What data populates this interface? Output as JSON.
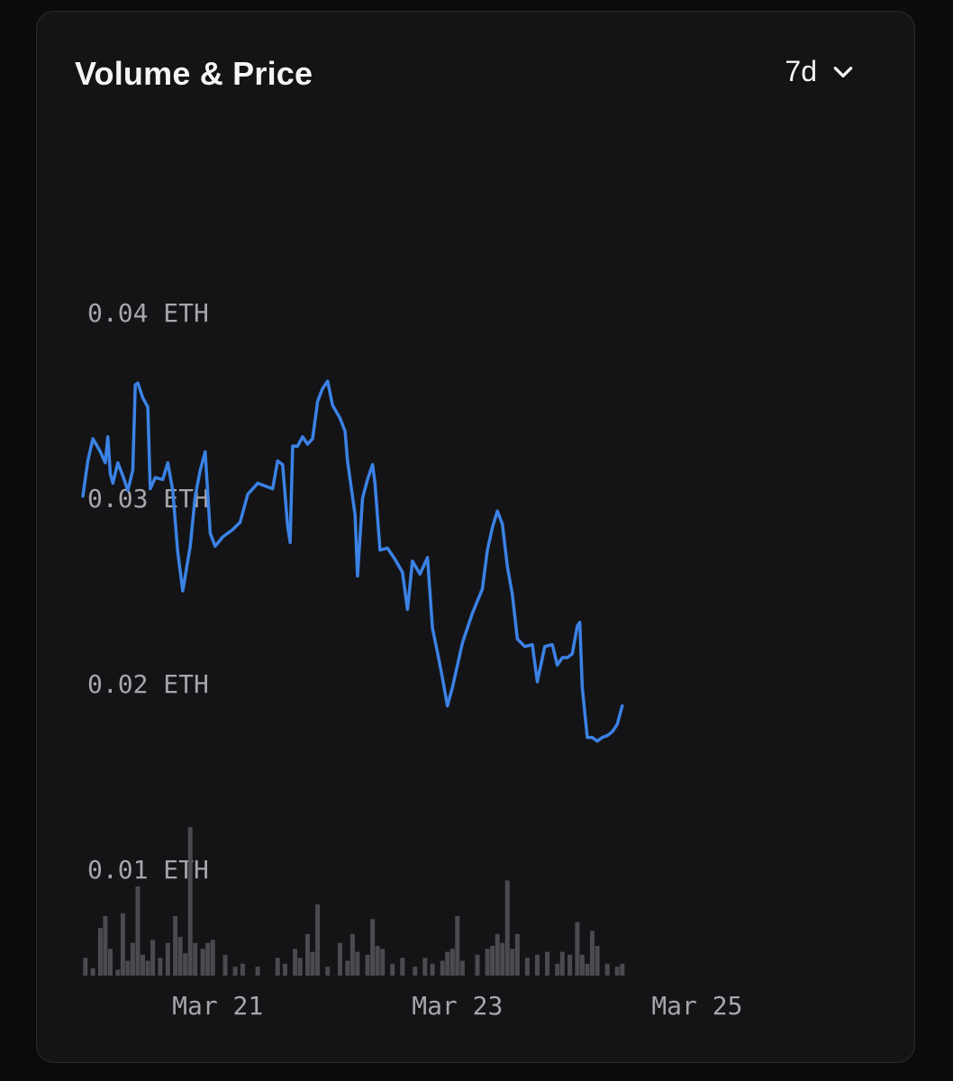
{
  "card": {
    "title": "Volume & Price",
    "range_selector": {
      "value": "7d",
      "icon": "chevron-down-icon"
    }
  },
  "colors": {
    "background": "#0b0b0c",
    "card": "#141416",
    "price_line": "#3b82e6",
    "volume_bars": "#4a4a4f",
    "axis_text": "#a6a6ab"
  },
  "chart_data": {
    "type": "line",
    "title": "Volume & Price",
    "x_range": [
      "2024-03-19T21:00",
      "2024-03-26T11:00"
    ],
    "y_unit": "ETH",
    "y_ticks": [
      {
        "value": 0.04,
        "label": "0.04 ETH"
      },
      {
        "value": 0.03,
        "label": "0.03 ETH"
      },
      {
        "value": 0.02,
        "label": "0.02 ETH"
      },
      {
        "value": 0.01,
        "label": "0.01 ETH"
      }
    ],
    "y_range": [
      0.0,
      0.05
    ],
    "x_ticks": [
      {
        "date": "2024-03-21",
        "label": "Mar 21"
      },
      {
        "date": "2024-03-23",
        "label": "Mar 23"
      },
      {
        "date": "2024-03-25",
        "label": "Mar 25"
      }
    ],
    "grid": false,
    "series": [
      {
        "type": "line",
        "points": [
          [
            "2024-03-19T21:00",
            0.0303
          ],
          [
            "2024-03-19T22:00",
            0.0322
          ],
          [
            "2024-03-19T23:00",
            0.0334
          ],
          [
            "2024-03-20T00:30",
            0.0327
          ],
          [
            "2024-03-20T01:30",
            0.0321
          ],
          [
            "2024-03-20T02:00",
            0.0335
          ],
          [
            "2024-03-20T02:30",
            0.0315
          ],
          [
            "2024-03-20T03:00",
            0.031
          ],
          [
            "2024-03-20T04:00",
            0.0321
          ],
          [
            "2024-03-20T05:00",
            0.0314
          ],
          [
            "2024-03-20T06:00",
            0.0306
          ],
          [
            "2024-03-20T07:00",
            0.0317
          ],
          [
            "2024-03-20T07:30",
            0.0363
          ],
          [
            "2024-03-20T08:00",
            0.0364
          ],
          [
            "2024-03-20T09:00",
            0.0356
          ],
          [
            "2024-03-20T10:00",
            0.0351
          ],
          [
            "2024-03-20T10:30",
            0.0307
          ],
          [
            "2024-03-20T11:30",
            0.0313
          ],
          [
            "2024-03-20T13:00",
            0.0312
          ],
          [
            "2024-03-20T14:00",
            0.0321
          ],
          [
            "2024-03-20T15:00",
            0.0306
          ],
          [
            "2024-03-20T16:00",
            0.0273
          ],
          [
            "2024-03-20T17:00",
            0.0252
          ],
          [
            "2024-03-20T18:30",
            0.0276
          ],
          [
            "2024-03-20T19:30",
            0.0303
          ],
          [
            "2024-03-20T20:30",
            0.0317
          ],
          [
            "2024-03-20T21:30",
            0.0327
          ],
          [
            "2024-03-20T22:30",
            0.0283
          ],
          [
            "2024-03-20T23:30",
            0.0276
          ],
          [
            "2024-03-21T01:00",
            0.0281
          ],
          [
            "2024-03-21T03:00",
            0.0285
          ],
          [
            "2024-03-21T04:30",
            0.0289
          ],
          [
            "2024-03-21T06:00",
            0.0304
          ],
          [
            "2024-03-21T08:00",
            0.031
          ],
          [
            "2024-03-21T11:00",
            0.0307
          ],
          [
            "2024-03-21T12:00",
            0.0322
          ],
          [
            "2024-03-21T13:00",
            0.032
          ],
          [
            "2024-03-21T14:00",
            0.0287
          ],
          [
            "2024-03-21T14:30",
            0.0278
          ],
          [
            "2024-03-21T15:00",
            0.033
          ],
          [
            "2024-03-21T16:00",
            0.033
          ],
          [
            "2024-03-21T17:00",
            0.0335
          ],
          [
            "2024-03-21T18:00",
            0.0331
          ],
          [
            "2024-03-21T19:00",
            0.0334
          ],
          [
            "2024-03-21T20:00",
            0.0354
          ],
          [
            "2024-03-21T21:00",
            0.0361
          ],
          [
            "2024-03-21T22:00",
            0.0365
          ],
          [
            "2024-03-21T23:00",
            0.0352
          ],
          [
            "2024-03-22T00:30",
            0.0345
          ],
          [
            "2024-03-22T01:30",
            0.0338
          ],
          [
            "2024-03-22T02:00",
            0.0322
          ],
          [
            "2024-03-22T03:30",
            0.0293
          ],
          [
            "2024-03-22T04:00",
            0.026
          ],
          [
            "2024-03-22T05:00",
            0.0302
          ],
          [
            "2024-03-22T06:00",
            0.0312
          ],
          [
            "2024-03-22T07:00",
            0.032
          ],
          [
            "2024-03-22T07:30",
            0.031
          ],
          [
            "2024-03-22T08:30",
            0.0274
          ],
          [
            "2024-03-22T10:00",
            0.0275
          ],
          [
            "2024-03-22T11:30",
            0.0269
          ],
          [
            "2024-03-22T13:00",
            0.0262
          ],
          [
            "2024-03-22T14:00",
            0.0242
          ],
          [
            "2024-03-22T15:00",
            0.0268
          ],
          [
            "2024-03-22T16:30",
            0.0261
          ],
          [
            "2024-03-22T18:00",
            0.027
          ],
          [
            "2024-03-22T19:00",
            0.0232
          ],
          [
            "2024-03-22T20:00",
            0.0219
          ],
          [
            "2024-03-22T21:00",
            0.0205
          ],
          [
            "2024-03-22T22:00",
            0.019
          ],
          [
            "2024-03-22T23:00",
            0.02
          ],
          [
            "2024-03-23T01:00",
            0.0224
          ],
          [
            "2024-03-23T03:00",
            0.024
          ],
          [
            "2024-03-23T05:00",
            0.0253
          ],
          [
            "2024-03-23T06:00",
            0.0274
          ],
          [
            "2024-03-23T07:00",
            0.0286
          ],
          [
            "2024-03-23T08:00",
            0.0295
          ],
          [
            "2024-03-23T09:00",
            0.0288
          ],
          [
            "2024-03-23T10:00",
            0.0265
          ],
          [
            "2024-03-23T11:00",
            0.025
          ],
          [
            "2024-03-23T12:00",
            0.0226
          ],
          [
            "2024-03-23T13:30",
            0.0222
          ],
          [
            "2024-03-23T15:00",
            0.0223
          ],
          [
            "2024-03-23T16:00",
            0.0203
          ],
          [
            "2024-03-23T17:30",
            0.0222
          ],
          [
            "2024-03-23T19:00",
            0.0223
          ],
          [
            "2024-03-23T20:00",
            0.0212
          ],
          [
            "2024-03-23T21:00",
            0.0216
          ],
          [
            "2024-03-23T22:00",
            0.0216
          ],
          [
            "2024-03-23T23:00",
            0.0218
          ],
          [
            "2024-03-24T00:00",
            0.0233
          ],
          [
            "2024-03-24T00:30",
            0.0235
          ],
          [
            "2024-03-24T01:00",
            0.02
          ],
          [
            "2024-03-24T02:00",
            0.0173
          ],
          [
            "2024-03-24T03:00",
            0.0173
          ],
          [
            "2024-03-24T04:00",
            0.0171
          ],
          [
            "2024-03-24T05:00",
            0.0173
          ],
          [
            "2024-03-24T06:00",
            0.0174
          ],
          [
            "2024-03-24T07:00",
            0.0176
          ],
          [
            "2024-03-24T08:00",
            0.018
          ],
          [
            "2024-03-24T09:00",
            0.019
          ]
        ]
      }
    ],
    "volume_bars": [
      {
        "x": "2024-03-19T21:30",
        "v": 0.12
      },
      {
        "x": "2024-03-19T23:00",
        "v": 0.05
      },
      {
        "x": "2024-03-20T00:30",
        "v": 0.32
      },
      {
        "x": "2024-03-20T01:30",
        "v": 0.4
      },
      {
        "x": "2024-03-20T02:30",
        "v": 0.18
      },
      {
        "x": "2024-03-20T04:00",
        "v": 0.04
      },
      {
        "x": "2024-03-20T05:00",
        "v": 0.42
      },
      {
        "x": "2024-03-20T06:00",
        "v": 0.1
      },
      {
        "x": "2024-03-20T07:00",
        "v": 0.22
      },
      {
        "x": "2024-03-20T08:00",
        "v": 0.6
      },
      {
        "x": "2024-03-20T09:00",
        "v": 0.14
      },
      {
        "x": "2024-03-20T10:00",
        "v": 0.1
      },
      {
        "x": "2024-03-20T11:00",
        "v": 0.24
      },
      {
        "x": "2024-03-20T12:30",
        "v": 0.12
      },
      {
        "x": "2024-03-20T14:00",
        "v": 0.22
      },
      {
        "x": "2024-03-20T15:30",
        "v": 0.4
      },
      {
        "x": "2024-03-20T16:30",
        "v": 0.26
      },
      {
        "x": "2024-03-20T17:30",
        "v": 0.15
      },
      {
        "x": "2024-03-20T18:30",
        "v": 1.0
      },
      {
        "x": "2024-03-20T19:30",
        "v": 0.22
      },
      {
        "x": "2024-03-20T21:00",
        "v": 0.18
      },
      {
        "x": "2024-03-20T22:00",
        "v": 0.22
      },
      {
        "x": "2024-03-20T23:00",
        "v": 0.24
      },
      {
        "x": "2024-03-21T01:30",
        "v": 0.14
      },
      {
        "x": "2024-03-21T03:30",
        "v": 0.06
      },
      {
        "x": "2024-03-21T05:00",
        "v": 0.08
      },
      {
        "x": "2024-03-21T08:00",
        "v": 0.06
      },
      {
        "x": "2024-03-21T12:00",
        "v": 0.12
      },
      {
        "x": "2024-03-21T13:30",
        "v": 0.08
      },
      {
        "x": "2024-03-21T15:30",
        "v": 0.18
      },
      {
        "x": "2024-03-21T16:30",
        "v": 0.12
      },
      {
        "x": "2024-03-21T18:00",
        "v": 0.28
      },
      {
        "x": "2024-03-21T19:00",
        "v": 0.16
      },
      {
        "x": "2024-03-21T20:00",
        "v": 0.48
      },
      {
        "x": "2024-03-21T22:00",
        "v": 0.06
      },
      {
        "x": "2024-03-22T00:30",
        "v": 0.22
      },
      {
        "x": "2024-03-22T02:00",
        "v": 0.1
      },
      {
        "x": "2024-03-22T03:00",
        "v": 0.28
      },
      {
        "x": "2024-03-22T04:00",
        "v": 0.16
      },
      {
        "x": "2024-03-22T06:00",
        "v": 0.14
      },
      {
        "x": "2024-03-22T07:00",
        "v": 0.38
      },
      {
        "x": "2024-03-22T08:00",
        "v": 0.2
      },
      {
        "x": "2024-03-22T09:00",
        "v": 0.18
      },
      {
        "x": "2024-03-22T11:00",
        "v": 0.08
      },
      {
        "x": "2024-03-22T13:00",
        "v": 0.12
      },
      {
        "x": "2024-03-22T15:30",
        "v": 0.06
      },
      {
        "x": "2024-03-22T17:30",
        "v": 0.12
      },
      {
        "x": "2024-03-22T19:00",
        "v": 0.08
      },
      {
        "x": "2024-03-22T21:00",
        "v": 0.1
      },
      {
        "x": "2024-03-22T22:00",
        "v": 0.16
      },
      {
        "x": "2024-03-22T23:00",
        "v": 0.18
      },
      {
        "x": "2024-03-23T00:00",
        "v": 0.4
      },
      {
        "x": "2024-03-23T01:00",
        "v": 0.1
      },
      {
        "x": "2024-03-23T04:00",
        "v": 0.14
      },
      {
        "x": "2024-03-23T06:00",
        "v": 0.18
      },
      {
        "x": "2024-03-23T07:00",
        "v": 0.2
      },
      {
        "x": "2024-03-23T08:00",
        "v": 0.28
      },
      {
        "x": "2024-03-23T09:00",
        "v": 0.22
      },
      {
        "x": "2024-03-23T10:00",
        "v": 0.64
      },
      {
        "x": "2024-03-23T11:00",
        "v": 0.18
      },
      {
        "x": "2024-03-23T12:00",
        "v": 0.28
      },
      {
        "x": "2024-03-23T14:00",
        "v": 0.12
      },
      {
        "x": "2024-03-23T16:00",
        "v": 0.14
      },
      {
        "x": "2024-03-23T18:00",
        "v": 0.16
      },
      {
        "x": "2024-03-23T20:00",
        "v": 0.08
      },
      {
        "x": "2024-03-23T21:00",
        "v": 0.16
      },
      {
        "x": "2024-03-23T22:30",
        "v": 0.14
      },
      {
        "x": "2024-03-24T00:00",
        "v": 0.36
      },
      {
        "x": "2024-03-24T01:00",
        "v": 0.14
      },
      {
        "x": "2024-03-24T02:00",
        "v": 0.08
      },
      {
        "x": "2024-03-24T03:00",
        "v": 0.3
      },
      {
        "x": "2024-03-24T04:00",
        "v": 0.2
      },
      {
        "x": "2024-03-24T06:00",
        "v": 0.08
      },
      {
        "x": "2024-03-24T08:00",
        "v": 0.06
      },
      {
        "x": "2024-03-24T09:00",
        "v": 0.08
      }
    ]
  }
}
